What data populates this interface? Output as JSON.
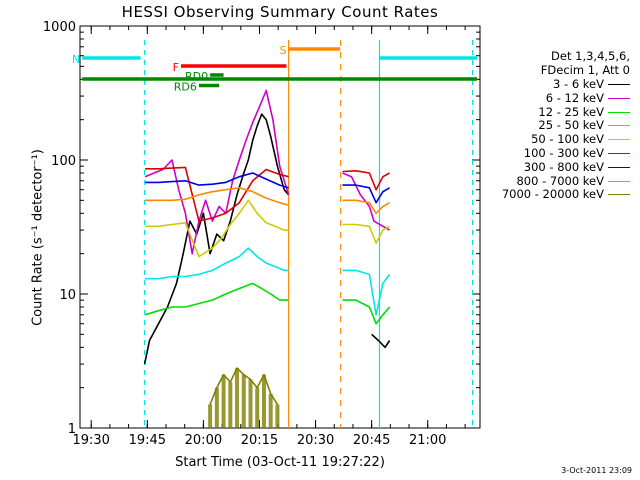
{
  "chart_data": {
    "type": "line",
    "title": "HESSI Observing Summary Count Rates",
    "ylabel": "Count Rate (s⁻¹ detector⁻¹)",
    "xlabel": "Start Time (03-Oct-11 19:27:22)",
    "timestamp": "3-Oct-2011 23:09",
    "y_scale": "log",
    "ylim": [
      1,
      1000
    ],
    "yticks": [
      "1",
      "10",
      "100",
      "1000"
    ],
    "xlim_minutes": [
      19.45,
      21.233
    ],
    "xticks": [
      "19:30",
      "19:45",
      "20:00",
      "20:15",
      "20:30",
      "20:45",
      "21:00"
    ],
    "xtick_hours": [
      19.5,
      19.75,
      20.0,
      20.25,
      20.5,
      20.75,
      21.0
    ],
    "legend_header": [
      "Det 1,3,4,5,6,",
      "FDecim 1, Att 0"
    ],
    "series": [
      {
        "name": "3 - 6 keV",
        "color": "#000000",
        "t": [
          19.738,
          19.76,
          19.8,
          19.84,
          19.88,
          19.91,
          19.94,
          19.97,
          20.0,
          20.03,
          20.06,
          20.09,
          20.12,
          20.15,
          20.18,
          20.2,
          20.22,
          20.24,
          20.26,
          20.28,
          20.3,
          20.33,
          20.36,
          20.38
        ],
        "v": [
          3,
          4.5,
          6,
          8,
          12,
          20,
          35,
          28,
          40,
          20,
          28,
          25,
          35,
          55,
          80,
          100,
          140,
          180,
          220,
          200,
          150,
          90,
          60,
          55
        ],
        "t2": [
          20.75,
          20.78,
          20.81,
          20.83
        ],
        "v2": [
          5,
          4.5,
          4,
          4.5
        ]
      },
      {
        "name": "6 - 12 keV",
        "color": "#cc00cc",
        "t": [
          19.74,
          19.78,
          19.82,
          19.86,
          19.89,
          19.92,
          19.95,
          19.98,
          20.01,
          20.04,
          20.07,
          20.1,
          20.13,
          20.16,
          20.19,
          20.22,
          20.25,
          20.28,
          20.31,
          20.34,
          20.38
        ],
        "v": [
          75,
          80,
          85,
          100,
          60,
          40,
          20,
          35,
          50,
          35,
          45,
          40,
          70,
          100,
          140,
          190,
          250,
          330,
          200,
          90,
          55
        ],
        "t2": [
          20.62,
          20.66,
          20.7,
          20.74,
          20.76,
          20.8,
          20.83
        ],
        "v2": [
          80,
          75,
          55,
          45,
          35,
          32,
          30
        ]
      },
      {
        "name": "12 - 25 keV",
        "color": "#00dd00",
        "t": [
          19.74,
          19.8,
          19.86,
          19.92,
          19.98,
          20.04,
          20.1,
          20.16,
          20.22,
          20.26,
          20.3,
          20.34,
          20.38
        ],
        "v": [
          7,
          7.5,
          8,
          8,
          8.5,
          9,
          10,
          11,
          12,
          11,
          10,
          9,
          9
        ],
        "t2": [
          20.62,
          20.68,
          20.74,
          20.77,
          20.8,
          20.83
        ],
        "v2": [
          9,
          9,
          8,
          6,
          7,
          8
        ]
      },
      {
        "name": "25 - 50 keV",
        "color": "#00e6e6",
        "t": [
          19.74,
          19.8,
          19.86,
          19.92,
          19.98,
          20.04,
          20.1,
          20.16,
          20.2,
          20.24,
          20.28,
          20.32,
          20.36,
          20.38
        ],
        "v": [
          13,
          13,
          13.5,
          13.5,
          14,
          15,
          17,
          19,
          22,
          19,
          17,
          16,
          15,
          15
        ],
        "t2": [
          20.62,
          20.68,
          20.74,
          20.77,
          20.8,
          20.83
        ],
        "v2": [
          15,
          15,
          14,
          7,
          12,
          14
        ]
      },
      {
        "name": "50 - 100 keV",
        "color": "#cccc00",
        "t": [
          19.74,
          19.8,
          19.86,
          19.92,
          19.98,
          20.04,
          20.08,
          20.12,
          20.16,
          20.2,
          20.24,
          20.28,
          20.32,
          20.36,
          20.38
        ],
        "v": [
          32,
          32,
          33,
          34,
          19,
          22,
          26,
          33,
          40,
          50,
          40,
          34,
          32,
          30,
          30
        ],
        "t2": [
          20.62,
          20.68,
          20.74,
          20.77,
          20.8,
          20.83
        ],
        "v2": [
          33,
          33,
          32,
          24,
          30,
          32
        ]
      },
      {
        "name": "100 - 300 keV",
        "color": "#dd0000",
        "t": [
          19.74,
          19.8,
          19.86,
          19.92,
          19.98,
          20.04,
          20.1,
          20.16,
          20.22,
          20.28,
          20.34,
          20.38
        ],
        "v": [
          86,
          86,
          87,
          88,
          35,
          37,
          40,
          48,
          70,
          85,
          78,
          75
        ],
        "t2": [
          20.62,
          20.68,
          20.74,
          20.77,
          20.8,
          20.83
        ],
        "v2": [
          82,
          83,
          80,
          60,
          75,
          80
        ]
      },
      {
        "name": "300 - 800 keV",
        "color": "#0000dd",
        "t": [
          19.74,
          19.8,
          19.86,
          19.92,
          19.98,
          20.04,
          20.1,
          20.16,
          20.22,
          20.28,
          20.34,
          20.38
        ],
        "v": [
          68,
          68,
          69,
          70,
          65,
          66,
          68,
          75,
          80,
          72,
          65,
          62
        ],
        "t2": [
          20.62,
          20.68,
          20.74,
          20.77,
          20.8,
          20.83
        ],
        "v2": [
          65,
          65,
          62,
          48,
          58,
          62
        ]
      },
      {
        "name": "800 - 7000 keV",
        "color": "#ff8800",
        "t": [
          19.74,
          19.8,
          19.86,
          19.92,
          19.98,
          20.04,
          20.1,
          20.16,
          20.22,
          20.28,
          20.34,
          20.38
        ],
        "v": [
          50,
          50,
          50,
          51,
          55,
          58,
          60,
          62,
          58,
          52,
          48,
          46
        ],
        "t2": [
          20.62,
          20.68,
          20.74,
          20.77,
          20.8,
          20.83
        ],
        "v2": [
          50,
          50,
          48,
          40,
          45,
          48
        ]
      },
      {
        "name": "7000 - 20000 keV",
        "color": "#808000",
        "t": [
          20.03,
          20.06,
          20.09,
          20.12,
          20.15,
          20.18,
          20.21,
          20.24,
          20.27,
          20.3,
          20.33
        ],
        "v": [
          1.5,
          2,
          2.5,
          2.2,
          2.8,
          2.5,
          2.3,
          2,
          2.5,
          1.8,
          1.5
        ],
        "t2": [],
        "v2": []
      }
    ],
    "flags": [
      {
        "label": "N",
        "color": "#00e6e6",
        "t_start": 19.46,
        "t_end": 19.72,
        "level": 1.0
      },
      {
        "label": "",
        "color": "#00e6e6",
        "t_start": 20.785,
        "t_end": 21.22,
        "level": 1.0
      },
      {
        "label": "S",
        "color": "#ff8800",
        "t_start": 20.38,
        "t_end": 20.61,
        "level": 1.18
      },
      {
        "label": "F",
        "color": "#ff0000",
        "t_start": 19.9,
        "t_end": 20.37,
        "level": 0.84
      },
      {
        "label": "RD0",
        "color": "#008800",
        "t_start": 20.03,
        "t_end": 20.09,
        "level": 0.66
      },
      {
        "label": "RD6",
        "color": "#008800",
        "t_start": 19.98,
        "t_end": 20.07,
        "level": 0.45
      },
      {
        "label": "",
        "color": "#008800",
        "t_start": 19.46,
        "t_end": 21.22,
        "level": 0.58
      }
    ]
  }
}
